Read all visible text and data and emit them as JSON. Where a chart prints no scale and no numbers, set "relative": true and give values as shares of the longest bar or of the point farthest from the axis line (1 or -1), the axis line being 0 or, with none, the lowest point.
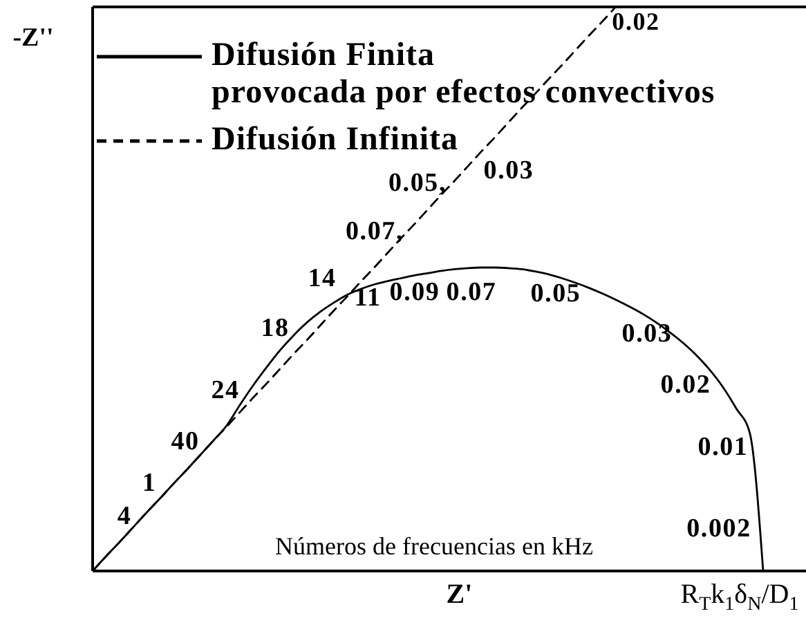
{
  "chart_data": {
    "type": "line",
    "relative": true,
    "xlabel": "Z'",
    "ylabel": "-Z''",
    "legend": "top left",
    "marker": "none",
    "categories": [
      null,
      null,
      null,
      null,
      null,
      null,
      null,
      null,
      null,
      null,
      null,
      null,
      null,
      null,
      null,
      null,
      null,
      null,
      null,
      null,
      null,
      null,
      null,
      null,
      null,
      null,
      null,
      null,
      null,
      null,
      null,
      null,
      null,
      null,
      null,
      null,
      null,
      null,
      null,
      null,
      null,
      null,
      null,
      null,
      null,
      null,
      null,
      null,
      null,
      null,
      null
    ],
    "series": [
      {
        "name": "Difusión Finita\nprovocada por efectos convectivos",
        "color": "#000000",
        "line_style": "solid",
        "values": [
          0,
          0.026,
          0.051,
          0.077,
          0.103,
          0.128,
          0.154,
          0.179,
          0.205,
          0.231,
          0.258,
          0.295,
          0.33,
          0.362,
          0.392,
          0.418,
          0.441,
          0.46,
          0.476,
          0.49,
          0.5,
          0.508,
          0.514,
          0.519,
          0.524,
          0.528,
          0.532,
          0.535,
          0.537,
          0.538,
          0.538,
          0.537,
          0.535,
          0.531,
          0.526,
          0.519,
          0.511,
          0.502,
          0.492,
          0.481,
          0.469,
          0.456,
          0.441,
          0.424,
          0.405,
          0.383,
          0.357,
          0.326,
          0.288,
          0.245,
          0
        ]
      },
      {
        "name": "Difusión Infinita",
        "color": "#000000",
        "line_style": "dashed",
        "values": [
          0,
          0.026,
          0.051,
          0.077,
          0.103,
          0.128,
          0.154,
          0.179,
          0.205,
          0.231,
          0.256,
          0.282,
          0.308,
          0.333,
          0.359,
          0.385,
          0.41,
          0.436,
          0.462,
          0.487,
          0.513,
          0.538,
          0.564,
          0.59,
          0.615,
          0.641,
          0.667,
          0.692,
          0.718,
          0.744,
          0.769,
          0.795,
          0.821,
          0.846,
          0.872,
          0.897,
          0.923,
          0.949,
          0.974,
          1,
          null,
          null,
          null,
          null,
          null,
          null,
          null,
          null,
          null,
          null,
          null
        ]
      }
    ],
    "annotations": [
      "4",
      "1",
      "40",
      "24",
      "18",
      "14",
      "11",
      "0.09",
      "0.07",
      "0.05",
      "0.03",
      "0.02",
      "0.01",
      "0.002",
      "0.07,",
      "0.05,",
      "0.03",
      "0.02",
      "R$_{T}$k$_{1}$δ$_{N}$/D$_{1}$",
      "Números de frecuencias en kHz"
    ]
  }
}
